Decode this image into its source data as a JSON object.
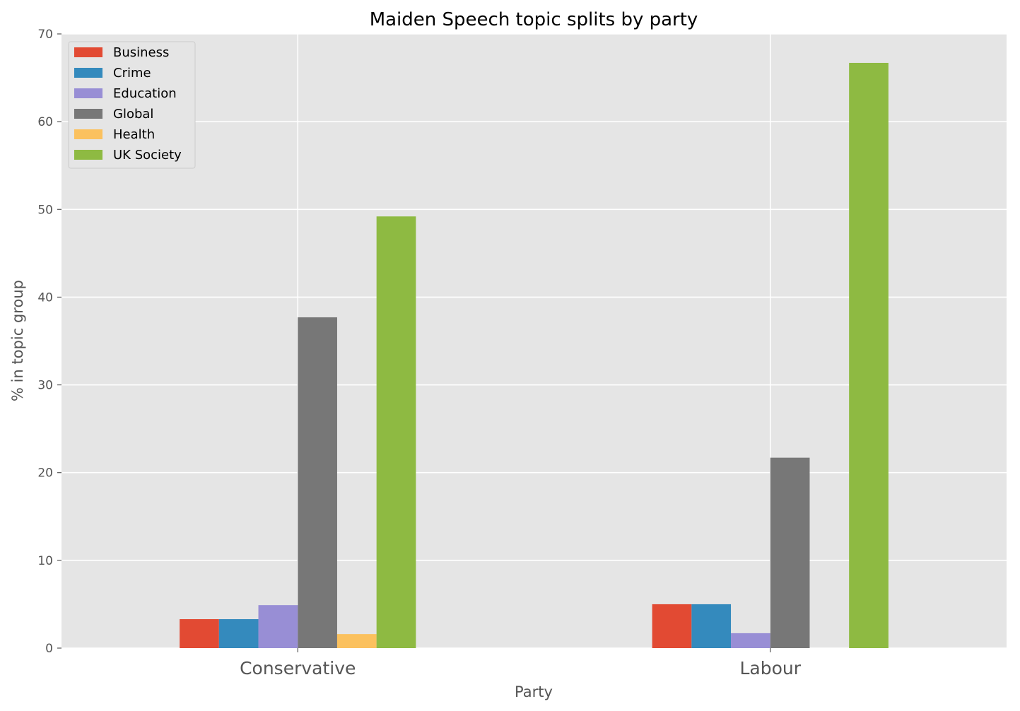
{
  "chart_data": {
    "type": "bar",
    "title": "Maiden Speech topic splits by party",
    "xlabel": "Party",
    "ylabel": "% in topic group",
    "categories": [
      "Conservative",
      "Labour"
    ],
    "ylim": [
      0,
      70
    ],
    "yticks": [
      0,
      10,
      20,
      30,
      40,
      50,
      60,
      70
    ],
    "grid": true,
    "legend_position": "top-left",
    "series": [
      {
        "name": "Business",
        "color": "#E24A33",
        "values": [
          3.3,
          5.0
        ]
      },
      {
        "name": "Crime",
        "color": "#348ABD",
        "values": [
          3.3,
          5.0
        ]
      },
      {
        "name": "Education",
        "color": "#988ED5",
        "values": [
          4.9,
          1.7
        ]
      },
      {
        "name": "Global",
        "color": "#777777",
        "values": [
          37.7,
          21.7
        ]
      },
      {
        "name": "Health",
        "color": "#FBC15E",
        "values": [
          1.6,
          0.0
        ]
      },
      {
        "name": "UK Society",
        "color": "#8EBA42",
        "values": [
          49.2,
          66.7
        ]
      }
    ],
    "background_color": "#E5E5E5",
    "grid_color": "#FFFFFF"
  }
}
